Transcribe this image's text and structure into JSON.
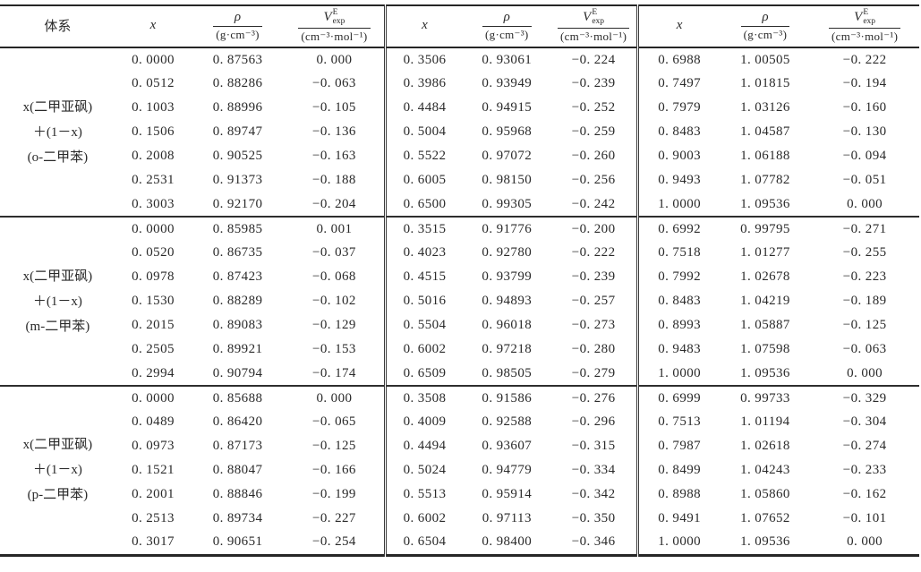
{
  "header": {
    "system": "体系",
    "x": "x",
    "rho_num": "ρ",
    "rho_den": "(g·cm⁻³)",
    "v_base": "V",
    "v_sup": "E",
    "v_sub": "exp",
    "v_den": "(cm⁻³·mol⁻¹)"
  },
  "groups": [
    {
      "system_lines": [
        "x(二甲亚砜)",
        "＋(1－x)",
        "(o-二甲苯)"
      ],
      "rows": [
        [
          "0. 0000",
          "0. 87563",
          "0. 000",
          "0. 3506",
          "0. 93061",
          "−0. 224",
          "0. 6988",
          "1. 00505",
          "−0. 222"
        ],
        [
          "0. 0512",
          "0. 88286",
          "−0. 063",
          "0. 3986",
          "0. 93949",
          "−0. 239",
          "0. 7497",
          "1. 01815",
          "−0. 194"
        ],
        [
          "0. 1003",
          "0. 88996",
          "−0. 105",
          "0. 4484",
          "0. 94915",
          "−0. 252",
          "0. 7979",
          "1. 03126",
          "−0. 160"
        ],
        [
          "0. 1506",
          "0. 89747",
          "−0. 136",
          "0. 5004",
          "0. 95968",
          "−0. 259",
          "0. 8483",
          "1. 04587",
          "−0. 130"
        ],
        [
          "0. 2008",
          "0. 90525",
          "−0. 163",
          "0. 5522",
          "0. 97072",
          "−0. 260",
          "0. 9003",
          "1. 06188",
          "−0. 094"
        ],
        [
          "0. 2531",
          "0. 91373",
          "−0. 188",
          "0. 6005",
          "0. 98150",
          "−0. 256",
          "0. 9493",
          "1. 07782",
          "−0. 051"
        ],
        [
          "0. 3003",
          "0. 92170",
          "−0. 204",
          "0. 6500",
          "0. 99305",
          "−0. 242",
          "1. 0000",
          "1. 09536",
          "0. 000"
        ]
      ]
    },
    {
      "system_lines": [
        "x(二甲亚砜)",
        "＋(1－x)",
        "(m-二甲苯)"
      ],
      "rows": [
        [
          "0. 0000",
          "0. 85985",
          "0. 001",
          "0. 3515",
          "0. 91776",
          "−0. 200",
          "0. 6992",
          "0. 99795",
          "−0. 271"
        ],
        [
          "0. 0520",
          "0. 86735",
          "−0. 037",
          "0. 4023",
          "0. 92780",
          "−0. 222",
          "0. 7518",
          "1. 01277",
          "−0. 255"
        ],
        [
          "0. 0978",
          "0. 87423",
          "−0. 068",
          "0. 4515",
          "0. 93799",
          "−0. 239",
          "0. 7992",
          "1. 02678",
          "−0. 223"
        ],
        [
          "0. 1530",
          "0. 88289",
          "−0. 102",
          "0. 5016",
          "0. 94893",
          "−0. 257",
          "0. 8483",
          "1. 04219",
          "−0. 189"
        ],
        [
          "0. 2015",
          "0. 89083",
          "−0. 129",
          "0. 5504",
          "0. 96018",
          "−0. 273",
          "0. 8993",
          "1. 05887",
          "−0. 125"
        ],
        [
          "0. 2505",
          "0. 89921",
          "−0. 153",
          "0. 6002",
          "0. 97218",
          "−0. 280",
          "0. 9483",
          "1. 07598",
          "−0. 063"
        ],
        [
          "0. 2994",
          "0. 90794",
          "−0. 174",
          "0. 6509",
          "0. 98505",
          "−0. 279",
          "1. 0000",
          "1. 09536",
          "0. 000"
        ]
      ]
    },
    {
      "system_lines": [
        "x(二甲亚砜)",
        "＋(1－x)",
        "(p-二甲苯)"
      ],
      "rows": [
        [
          "0. 0000",
          "0. 85688",
          "0. 000",
          "0. 3508",
          "0. 91586",
          "−0. 276",
          "0. 6999",
          "0. 99733",
          "−0. 329"
        ],
        [
          "0. 0489",
          "0. 86420",
          "−0. 065",
          "0. 4009",
          "0. 92588",
          "−0. 296",
          "0. 7513",
          "1. 01194",
          "−0. 304"
        ],
        [
          "0. 0973",
          "0. 87173",
          "−0. 125",
          "0. 4494",
          "0. 93607",
          "−0. 315",
          "0. 7987",
          "1. 02618",
          "−0. 274"
        ],
        [
          "0. 1521",
          "0. 88047",
          "−0. 166",
          "0. 5024",
          "0. 94779",
          "−0. 334",
          "0. 8499",
          "1. 04243",
          "−0. 233"
        ],
        [
          "0. 2001",
          "0. 88846",
          "−0. 199",
          "0. 5513",
          "0. 95914",
          "−0. 342",
          "0. 8988",
          "1. 05860",
          "−0. 162"
        ],
        [
          "0. 2513",
          "0. 89734",
          "−0. 227",
          "0. 6002",
          "0. 97113",
          "−0. 350",
          "0. 9491",
          "1. 07652",
          "−0. 101"
        ],
        [
          "0. 3017",
          "0. 90651",
          "−0. 254",
          "0. 6504",
          "0. 98400",
          "−0. 346",
          "1. 0000",
          "1. 09536",
          "0. 000"
        ]
      ]
    }
  ]
}
